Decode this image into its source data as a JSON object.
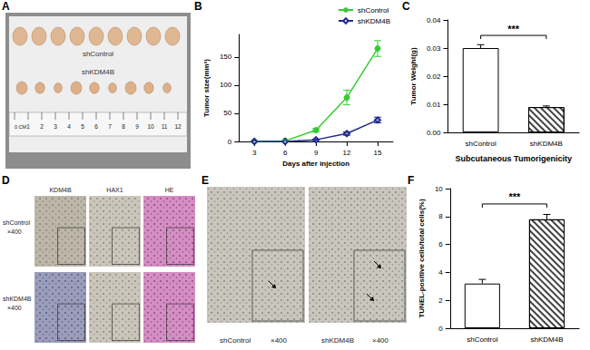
{
  "chart_data": [
    {
      "panel": "B",
      "type": "line",
      "xlabel": "Days after injection",
      "ylabel": "Tumor size(mm³)",
      "x": [
        3,
        6,
        9,
        12,
        15
      ],
      "xlim": [
        1.5,
        16.5
      ],
      "xticks": [
        3,
        6,
        9,
        12,
        15
      ],
      "ylim": [
        0,
        190
      ],
      "yticks": [
        0,
        50,
        100,
        150
      ],
      "grid": false,
      "legend": "upper right",
      "series": [
        {
          "name": "shControl",
          "color": "#33cc33",
          "marker": "circle",
          "values": [
            0,
            1,
            20,
            78,
            165
          ],
          "errors": [
            0.5,
            1,
            3,
            13,
            14
          ]
        },
        {
          "name": "shKDM4B",
          "color": "#1f2a8c",
          "marker": "diamond",
          "values": [
            0,
            0,
            3,
            14,
            38
          ],
          "errors": [
            0.3,
            0.3,
            1,
            3,
            5
          ]
        }
      ]
    },
    {
      "panel": "C",
      "type": "bar",
      "xlabel": "Subcutaneous Tumorigenicity",
      "ylabel": "Tumor Weight(g)",
      "categories": [
        "shControl",
        "shKDM4B"
      ],
      "values": [
        0.03,
        0.009
      ],
      "errors": [
        0.0012,
        0.0004
      ],
      "ylim": [
        0,
        0.04
      ],
      "yticks": [
        {
          "value": 0,
          "label": "0.00"
        },
        {
          "value": 0.01,
          "label": "0.01"
        },
        {
          "value": 0.02,
          "label": "0.02"
        },
        {
          "value": 0.03,
          "label": "0.03"
        },
        {
          "value": 0.04,
          "label": "0.04"
        }
      ],
      "grid": false,
      "color": "#ffffff",
      "annotations": [
        {
          "text": "***",
          "from": "shControl",
          "to": "shKDM4B",
          "y": 0.0345
        }
      ]
    },
    {
      "panel": "F",
      "type": "bar",
      "ylabel": "TUNEL-positive cells/total cells(%)",
      "categories": [
        "shControl",
        "shKDM4B"
      ],
      "values": [
        3.2,
        7.8
      ],
      "errors": [
        0.3,
        0.35
      ],
      "ylim": [
        0,
        10
      ],
      "yticks": [
        0,
        2,
        4,
        6,
        8,
        10
      ],
      "grid": false,
      "color": "#ffffff",
      "annotations": [
        {
          "text": "***",
          "from": "shControl",
          "to": "shKDM4B",
          "y": 8.9
        }
      ]
    }
  ],
  "photos": {
    "A": {
      "panel": "A",
      "rows": [
        "shControl",
        "shKDM4B"
      ],
      "ruler": [
        "0 CM",
        "1",
        "2",
        "3",
        "4",
        "5",
        "6",
        "7",
        "8",
        "9",
        "10",
        "11",
        "12"
      ]
    },
    "D": {
      "panel": "D",
      "columns": [
        "KDM4B",
        "HAX1",
        "HE"
      ],
      "rows": [
        {
          "label": "shControl",
          "magnification": "×400"
        },
        {
          "label": "shKDM4B",
          "magnification": "×400"
        }
      ]
    },
    "E": {
      "panel": "E",
      "captions": [
        {
          "label": "shControl",
          "magnification": "×400"
        },
        {
          "label": "shKDM4B",
          "magnification": "×400"
        }
      ]
    }
  }
}
